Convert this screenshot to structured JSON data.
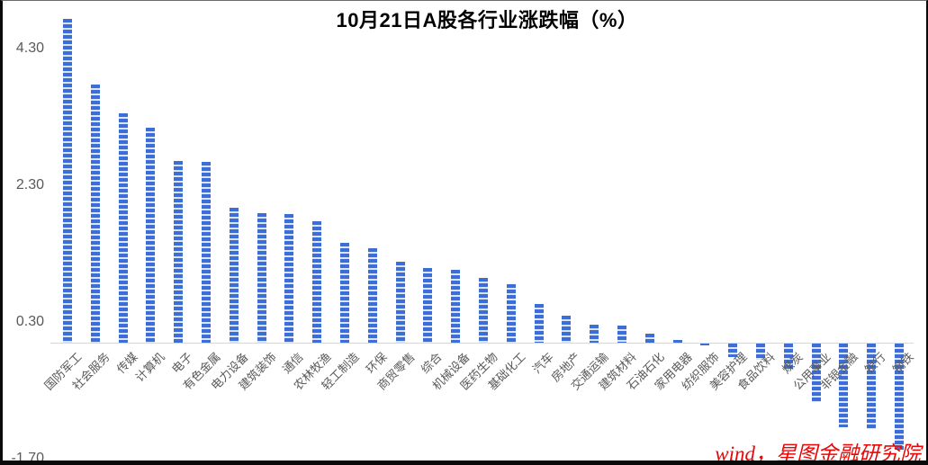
{
  "title": "10月21日A股各行业涨跌幅（%）",
  "source_note": "wind，星图金融研究院",
  "y_axis": {
    "tick_labels": [
      "4.30",
      "2.30",
      "0.30",
      "-1.70"
    ],
    "tick_values": [
      4.3,
      2.3,
      0.3,
      -1.7
    ]
  },
  "chart_data": {
    "type": "bar",
    "title": "10月21日A股各行业涨跌幅（%）",
    "xlabel": "",
    "ylabel": "",
    "ylim": [
      -1.7,
      4.8
    ],
    "yticks": [
      4.3,
      2.3,
      0.3,
      -1.7
    ],
    "grid": false,
    "legend": false,
    "bar_pattern": "horizontal-dashed-stripes",
    "categories": [
      "国防军工",
      "社会服务",
      "传媒",
      "计算机",
      "电子",
      "有色金属",
      "电力设备",
      "建筑装饰",
      "通信",
      "农林牧渔",
      "轻工制造",
      "环保",
      "商贸零售",
      "综合",
      "机械设备",
      "医药生物",
      "基础化工",
      "汽车",
      "房地产",
      "交通运输",
      "建筑材料",
      "石油石化",
      "家用电器",
      "纺织服饰",
      "美容护理",
      "食品饮料",
      "煤炭",
      "公用事业",
      "非银金融",
      "银行",
      "钢铁"
    ],
    "values": [
      4.74,
      3.77,
      3.36,
      3.15,
      2.66,
      2.64,
      1.98,
      1.9,
      1.88,
      1.78,
      1.46,
      1.38,
      1.19,
      1.09,
      1.07,
      0.95,
      0.85,
      0.57,
      0.39,
      0.26,
      0.25,
      0.13,
      0.04,
      -0.03,
      -0.2,
      -0.24,
      -0.38,
      -0.86,
      -1.23,
      -1.25,
      -1.55
    ]
  },
  "colors": {
    "bar": "#3d6ed8",
    "bar_gap": "#d9e4f6",
    "axis_line": "#d8d8d8",
    "tick_label": "#595959",
    "title_text": "#000000",
    "source_text": "#e90606"
  }
}
